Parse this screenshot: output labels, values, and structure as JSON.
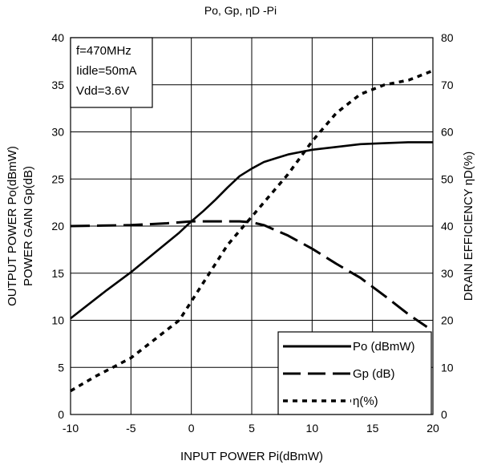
{
  "chart_data": {
    "type": "line",
    "title": "Po, Gp, ηD -Pi",
    "xlabel": "INPUT POWER Pi(dBmW)",
    "ylabel_left_line1": "OUTPUT POWER Po(dBmW)",
    "ylabel_left_line2": "POWER GAIN Gp(dB)",
    "ylabel_right": "DRAIN EFFICIENCY ηD(%)",
    "xlim": [
      -10,
      20
    ],
    "ylim_left": [
      0,
      40
    ],
    "ylim_right": [
      0,
      80
    ],
    "x_ticks": [
      "-10",
      "-5",
      "0",
      "5",
      "10",
      "15",
      "20"
    ],
    "y_left_ticks": [
      "0",
      "5",
      "10",
      "15",
      "20",
      "25",
      "30",
      "35",
      "40"
    ],
    "y_right_ticks": [
      "0",
      "10",
      "20",
      "30",
      "40",
      "50",
      "60",
      "70",
      "80"
    ],
    "grid": true,
    "conditions": [
      "f=470MHz",
      "Iidle=50mA",
      "Vdd=3.6V"
    ],
    "legend_position": "bottom-right",
    "series": [
      {
        "name": "Po (dBmW)",
        "axis": "left",
        "style": "solid",
        "x": [
          -10,
          -7,
          -5,
          -3,
          -1,
          0,
          1,
          2,
          3,
          4,
          5,
          6,
          7,
          8,
          10,
          12,
          14,
          16,
          18,
          20
        ],
        "y": [
          10.2,
          13.2,
          15.1,
          17.2,
          19.3,
          20.5,
          21.6,
          22.8,
          24.1,
          25.3,
          26.1,
          26.8,
          27.2,
          27.6,
          28.1,
          28.4,
          28.7,
          28.8,
          28.9,
          28.9
        ]
      },
      {
        "name": "Gp (dB)",
        "axis": "left",
        "style": "long-dash",
        "x": [
          -10,
          -5,
          -2,
          0,
          2,
          4,
          5,
          6,
          8,
          10,
          12,
          14,
          16,
          18,
          19.5
        ],
        "y": [
          20.0,
          20.1,
          20.3,
          20.5,
          20.5,
          20.5,
          20.4,
          20.1,
          19.0,
          17.6,
          16.0,
          14.5,
          12.6,
          10.6,
          9.3
        ]
      },
      {
        "name": "η(%)",
        "axis": "right",
        "style": "short-dash",
        "x": [
          -10,
          -8,
          -5,
          -3,
          -1,
          0,
          1,
          2,
          3,
          4,
          5,
          6,
          8,
          10,
          12,
          14,
          16,
          18,
          20
        ],
        "y": [
          5,
          8,
          12,
          16,
          20,
          24,
          28,
          32,
          36,
          39,
          42,
          45,
          51,
          58,
          64,
          68,
          70,
          71,
          73
        ]
      }
    ]
  }
}
